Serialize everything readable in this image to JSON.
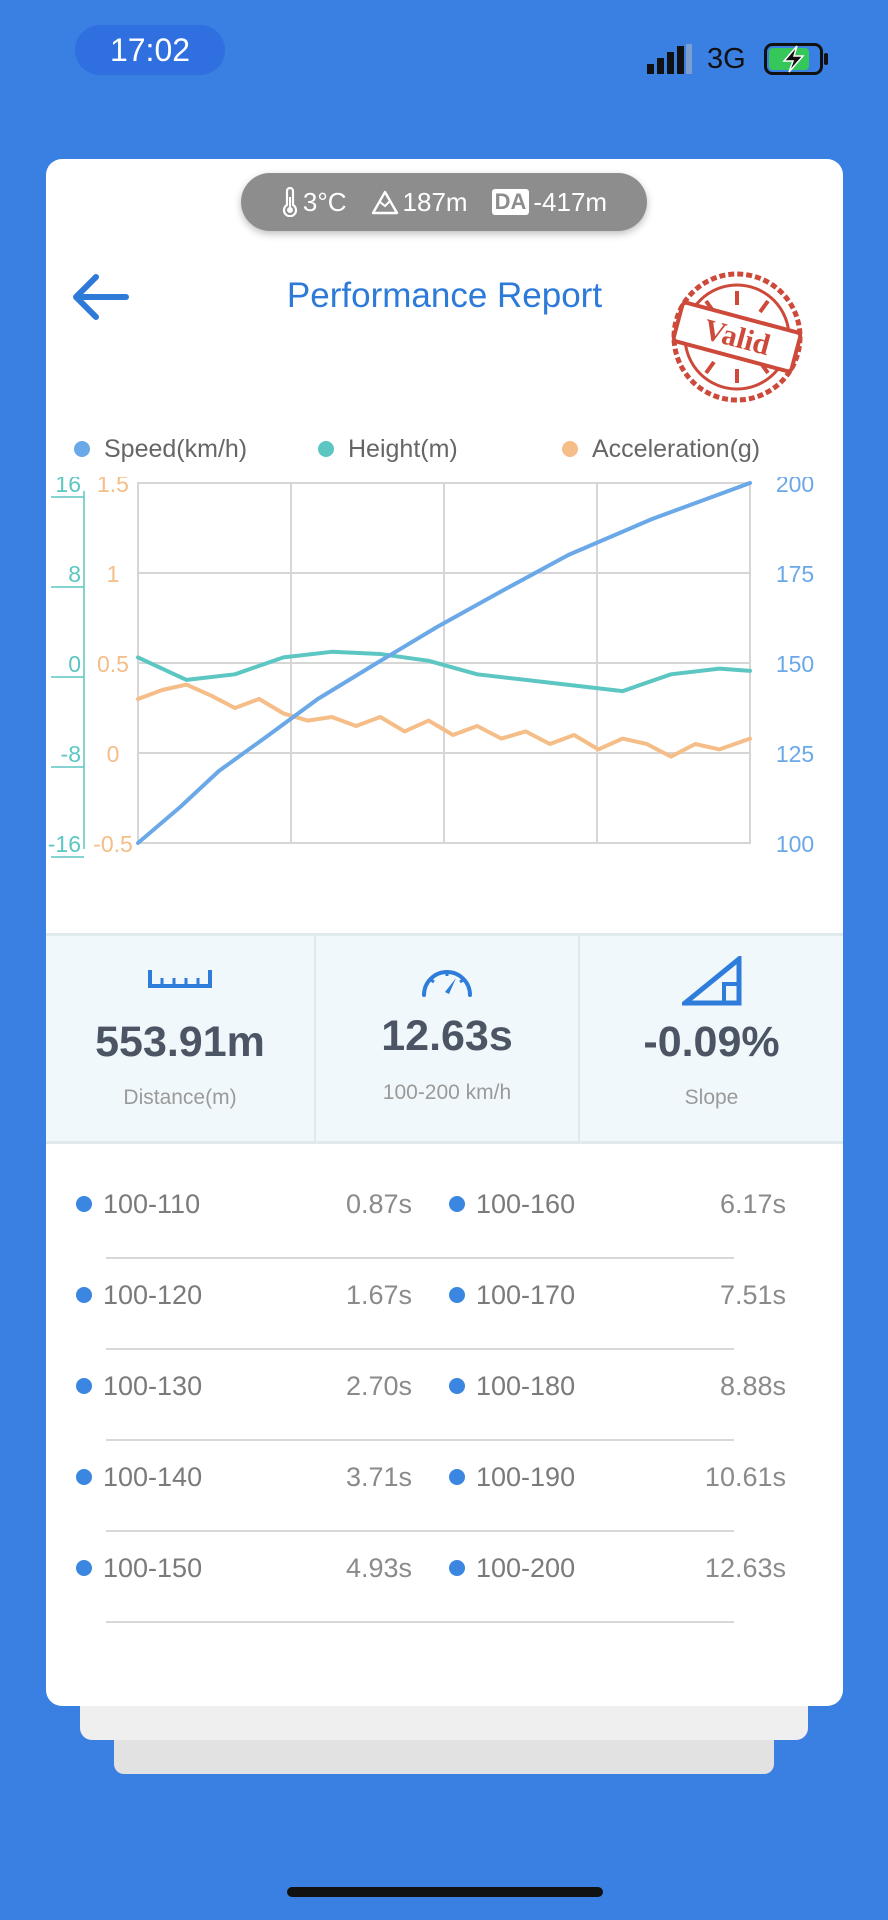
{
  "status_bar": {
    "time": "17:02",
    "network": "3G"
  },
  "environment": {
    "temperature": "3°C",
    "altitude": "187m",
    "da_label": "DA",
    "density_altitude": "-417m"
  },
  "header": {
    "title": "Performance Report",
    "stamp_text": "Valid"
  },
  "legend": [
    {
      "label": "Speed(km/h)",
      "color": "#6aa8e8"
    },
    {
      "label": "Height(m)",
      "color": "#5cc6c2"
    },
    {
      "label": "Acceleration(g)",
      "color": "#f5bd87"
    }
  ],
  "chart_data": {
    "type": "line",
    "x_range": [
      0,
      12.63
    ],
    "axes": {
      "height": {
        "ticks": [
          "16",
          "8",
          "0",
          "-8",
          "-16"
        ],
        "range": [
          -16,
          16
        ],
        "color": "#5cc6c2"
      },
      "acceleration": {
        "ticks": [
          "1.5",
          "1",
          "0.5",
          "0",
          "-0.5"
        ],
        "range": [
          -0.5,
          1.5
        ],
        "color": "#f5bd87"
      },
      "speed": {
        "ticks": [
          "200",
          "175",
          "150",
          "125",
          "100"
        ],
        "range": [
          100,
          200
        ],
        "color": "#6aa8e8"
      }
    },
    "series": [
      {
        "name": "Speed(km/h)",
        "color": "#6aa8e8",
        "x": [
          0,
          0.87,
          1.67,
          2.7,
          3.71,
          4.93,
          6.17,
          7.51,
          8.88,
          10.61,
          12.63
        ],
        "y": [
          100,
          110,
          120,
          130,
          140,
          150,
          160,
          170,
          180,
          190,
          200
        ]
      },
      {
        "name": "Height(m)",
        "color": "#5cc6c2",
        "x": [
          0,
          1.0,
          2.0,
          3.0,
          4.0,
          5.0,
          6.0,
          7.0,
          8.0,
          9.0,
          10.0,
          11.0,
          12.0,
          12.63
        ],
        "y": [
          0.5,
          -1.5,
          -1.0,
          0.5,
          1.0,
          0.8,
          0.2,
          -1.0,
          -1.5,
          -2.0,
          -2.5,
          -1.0,
          -0.5,
          -0.7
        ]
      },
      {
        "name": "Acceleration(g)",
        "color": "#f5bd87",
        "x": [
          0,
          0.5,
          1.0,
          1.5,
          2.0,
          2.5,
          3.0,
          3.5,
          4.0,
          4.5,
          5.0,
          5.5,
          6.0,
          6.5,
          7.0,
          7.5,
          8.0,
          8.5,
          9.0,
          9.5,
          10.0,
          10.5,
          11.0,
          11.5,
          12.0,
          12.63
        ],
        "y": [
          0.3,
          0.35,
          0.38,
          0.32,
          0.25,
          0.3,
          0.22,
          0.18,
          0.2,
          0.15,
          0.2,
          0.12,
          0.18,
          0.1,
          0.15,
          0.08,
          0.12,
          0.05,
          0.1,
          0.02,
          0.08,
          0.05,
          -0.02,
          0.05,
          0.02,
          0.08
        ]
      }
    ]
  },
  "stats": [
    {
      "value": "553.91m",
      "label": "Distance(m)",
      "icon": "ruler-icon"
    },
    {
      "value": "12.63s",
      "label": "100-200 km/h",
      "icon": "speedometer-icon"
    },
    {
      "value": "-0.09%",
      "label": "Slope",
      "icon": "slope-icon"
    }
  ],
  "splits": [
    {
      "label": "100-110",
      "time": "0.87s"
    },
    {
      "label": "100-120",
      "time": "1.67s"
    },
    {
      "label": "100-130",
      "time": "2.70s"
    },
    {
      "label": "100-140",
      "time": "3.71s"
    },
    {
      "label": "100-150",
      "time": "4.93s"
    },
    {
      "label": "100-160",
      "time": "6.17s"
    },
    {
      "label": "100-170",
      "time": "7.51s"
    },
    {
      "label": "100-180",
      "time": "8.88s"
    },
    {
      "label": "100-190",
      "time": "10.61s"
    },
    {
      "label": "100-200",
      "time": "12.63s"
    }
  ]
}
